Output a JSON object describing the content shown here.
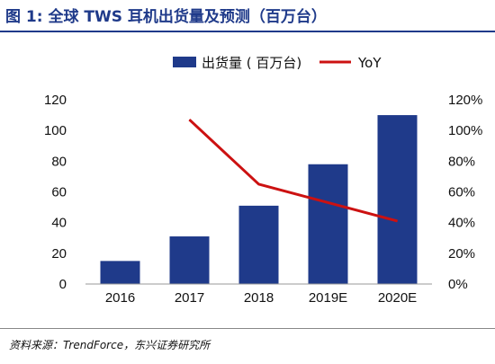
{
  "figure": {
    "title": "图 1: 全球 TWS 耳机出货量及预测（百万台）",
    "source": "资料来源：TrendForce，东兴证券研究所"
  },
  "colors": {
    "bar": "#1f3a8a",
    "line": "#cc1111",
    "title": "#1f3a8a"
  },
  "chart_data": {
    "type": "bar",
    "categories": [
      "2016",
      "2017",
      "2018",
      "2019E",
      "2020E"
    ],
    "series": [
      {
        "name": "出货量 ( 百万台)",
        "type": "bar",
        "axis": "left",
        "values": [
          15,
          31,
          51,
          78,
          110
        ]
      },
      {
        "name": "YoY",
        "type": "line",
        "axis": "right",
        "values": [
          null,
          1.07,
          0.65,
          0.53,
          0.41
        ]
      }
    ],
    "ylim": [
      0,
      120
    ],
    "yticks": [
      "0",
      "20",
      "40",
      "60",
      "80",
      "100",
      "120"
    ],
    "y2lim": [
      0,
      1.2
    ],
    "y2ticks": [
      "0%",
      "20%",
      "40%",
      "60%",
      "80%",
      "100%",
      "120%"
    ],
    "legend_position": "top",
    "grid": false
  }
}
